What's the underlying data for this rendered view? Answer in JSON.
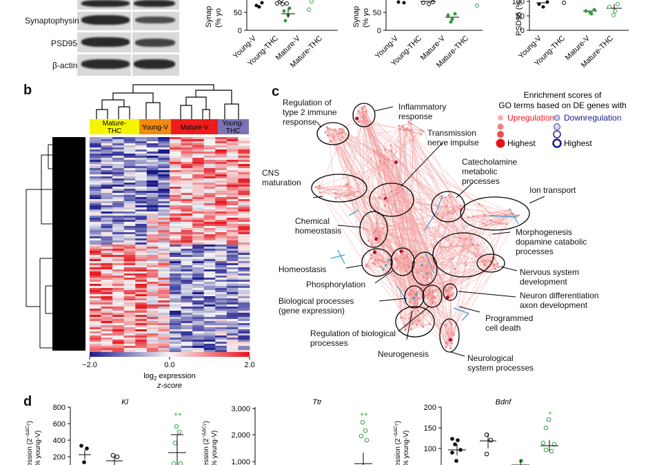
{
  "panel_a": {
    "blot_labels": [
      "Synaptophysin",
      "PSD95",
      "β-actin"
    ],
    "charts": [
      {
        "ylabel": "Synap...\n(% yo...",
        "categories": [
          "Young-V",
          "Young-THC",
          "Mature-V",
          "Mature-THC"
        ],
        "visible_ticks": [
          "50",
          "0"
        ]
      },
      {
        "ylabel": "Synap...\n(% yo...",
        "categories": [
          "Young-V",
          "Young-THC",
          "Mature-V",
          "Mature-THC"
        ],
        "visible_ticks": [
          "50",
          "0"
        ]
      },
      {
        "ylabel": "PSD95 (%...",
        "categories": [
          "Young-V",
          "Young-THC",
          "Mature-V",
          "Mature-THC"
        ],
        "visible_ticks": [
          "100",
          "50",
          "0"
        ]
      }
    ]
  },
  "panel_b": {
    "letter": "b",
    "groups": [
      {
        "label": "Mature-\nTHC",
        "color": "#f5f500"
      },
      {
        "label": "Young-V",
        "color": "#f08a10"
      },
      {
        "label": "Mature-V",
        "color": "#ee1c1c"
      },
      {
        "label": "Young-\nTHC",
        "color": "#7b73b5"
      }
    ],
    "colorbar": {
      "ticks": [
        "−2.0",
        "0.0",
        "2.0"
      ],
      "label_line1": "log",
      "label_sub": "2",
      "label_rest": " expression",
      "label_line2": "z-score"
    }
  },
  "panel_c": {
    "letter": "c",
    "legend": {
      "title_line1": "Enrichment scores of",
      "title_line2": "GO terms based on DE genes with",
      "up": "Upregulation",
      "down": "Downregulation",
      "highest_up": "Highest",
      "highest_down": "Highest"
    },
    "labels": [
      "Regulation of\ntype 2 immune\nresponse",
      "Inflammatory\nresponse",
      "Transmission\nnerve impulse",
      "Catecholamine\nmetabolic\nprocesses",
      "CNS\nmaturation",
      "Ion transport",
      "Chemical\nhomeostasis",
      "Morphogenesis\ndopamine catabolic\nprocesses",
      "Homeostasis",
      "Phosphorylation",
      "Nervous system\ndevelopment",
      "Biological processes\n(gene expression)",
      "Neuron differentiation\naxon development",
      "Regulation of biological\nprocesses",
      "Programmed\ncell death",
      "Neurogenesis",
      "Neurological\nsystem processes"
    ]
  },
  "panel_d": {
    "letter": "d",
    "charts": [
      {
        "title": "Kl",
        "ylabel": "ession (2^-ΔΔCt)\n% young-V)",
        "ticks": [
          "800",
          "600",
          "400",
          "200"
        ],
        "marker": "++"
      },
      {
        "title": "Ttr",
        "ylabel": "ession (2^-ΔΔCt)\n% young-V)",
        "ticks": [
          "3,000",
          "2,000",
          "1,000"
        ],
        "marker": "++"
      },
      {
        "title": "Bdnf",
        "ylabel": "ession (2^-ΔΔCt)\n% young-V)",
        "ticks": [
          "200",
          "150",
          "100"
        ],
        "marker": "+"
      }
    ]
  },
  "colors": {
    "up": "#e8141c",
    "down": "#1a1a8c",
    "edge_up": "#f2a0a0",
    "edge_down": "#2aa0d8",
    "green": "#2e9e3a"
  }
}
